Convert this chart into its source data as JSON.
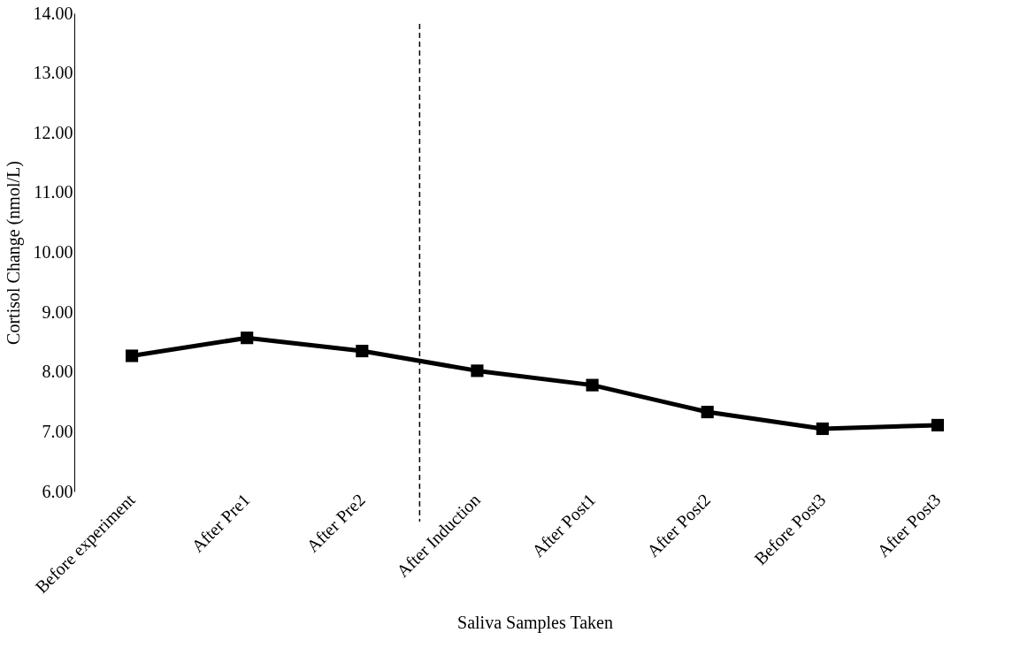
{
  "chart_data": {
    "type": "line",
    "xlabel": "Saliva Samples Taken",
    "ylabel": "Cortisol Change (nmol/L)",
    "categories": [
      "Before experiment",
      "After Pre1",
      "After Pre2",
      "After Induction",
      "After Post1",
      "After Post2",
      "Before Post3",
      "After Post3"
    ],
    "series": [
      {
        "color": "#000000",
        "values": [
          8.27,
          8.57,
          8.35,
          8.02,
          7.78,
          7.33,
          7.05,
          7.11
        ]
      }
    ],
    "ylim": [
      6,
      14
    ],
    "yticks": [
      {
        "value": 6,
        "label": "6.00"
      },
      {
        "value": 7,
        "label": "7.00"
      },
      {
        "value": 8,
        "label": "8.00"
      },
      {
        "value": 9,
        "label": "9.00"
      },
      {
        "value": 10,
        "label": "10.00"
      },
      {
        "value": 11,
        "label": "11.00"
      },
      {
        "value": 12,
        "label": "12.00"
      },
      {
        "value": 13,
        "label": "13.00"
      },
      {
        "value": 14,
        "label": "14.00"
      }
    ],
    "marker": "square",
    "line_style": "solid",
    "grid": false,
    "legend": false
  }
}
